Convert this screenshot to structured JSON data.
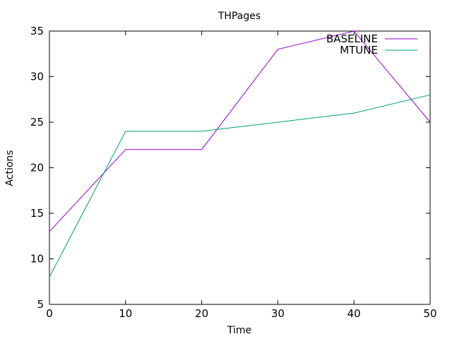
{
  "chart_data": {
    "type": "line",
    "title": "THPages",
    "xlabel": "Time",
    "ylabel": "Actions",
    "x": [
      0,
      10,
      20,
      30,
      40,
      50
    ],
    "xlim": [
      0,
      50
    ],
    "ylim": [
      5,
      35
    ],
    "xticks": [
      0,
      10,
      20,
      30,
      40,
      50
    ],
    "yticks": [
      5,
      10,
      15,
      20,
      25,
      30,
      35
    ],
    "grid": false,
    "legend_position": "top-right",
    "series": [
      {
        "name": "BASELINE",
        "color": "#9400d3",
        "values": [
          13,
          22,
          22,
          33,
          35,
          25
        ]
      },
      {
        "name": "MTUNE",
        "color": "#009e73",
        "values": [
          8,
          24,
          24,
          25,
          26,
          28
        ]
      }
    ]
  }
}
